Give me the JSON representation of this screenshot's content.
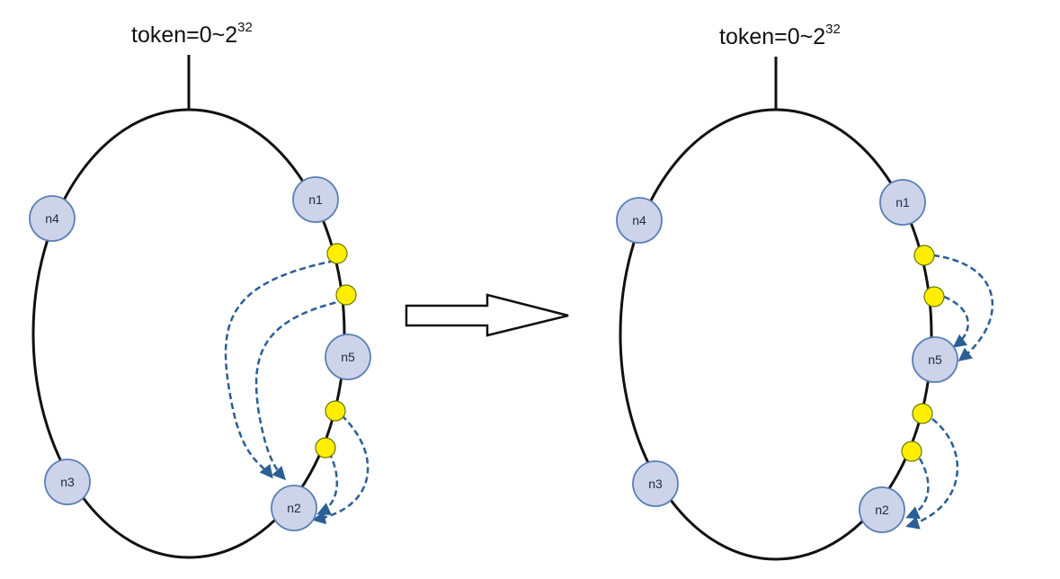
{
  "left_ring": {
    "token": {
      "base": "token=0~2",
      "exponent": "32"
    },
    "nodes": [
      {
        "id": "n1",
        "label": "n1"
      },
      {
        "id": "n2",
        "label": "n2"
      },
      {
        "id": "n3",
        "label": "n3"
      },
      {
        "id": "n4",
        "label": "n4"
      },
      {
        "id": "n5",
        "label": "n5"
      }
    ]
  },
  "right_ring": {
    "token": {
      "base": "token=0~2",
      "exponent": "32"
    },
    "nodes": [
      {
        "id": "n1",
        "label": "n1"
      },
      {
        "id": "n2",
        "label": "n2"
      },
      {
        "id": "n3",
        "label": "n3"
      },
      {
        "id": "n4",
        "label": "n4"
      },
      {
        "id": "n5",
        "label": "n5"
      }
    ]
  },
  "colors": {
    "ring": "#111111",
    "node_fill": "#cdd4ea",
    "node_stroke": "#5b7fb5",
    "data_point": "#ffee00",
    "data_point_stroke": "#6a7a00",
    "arrow": "#2a5f96"
  }
}
